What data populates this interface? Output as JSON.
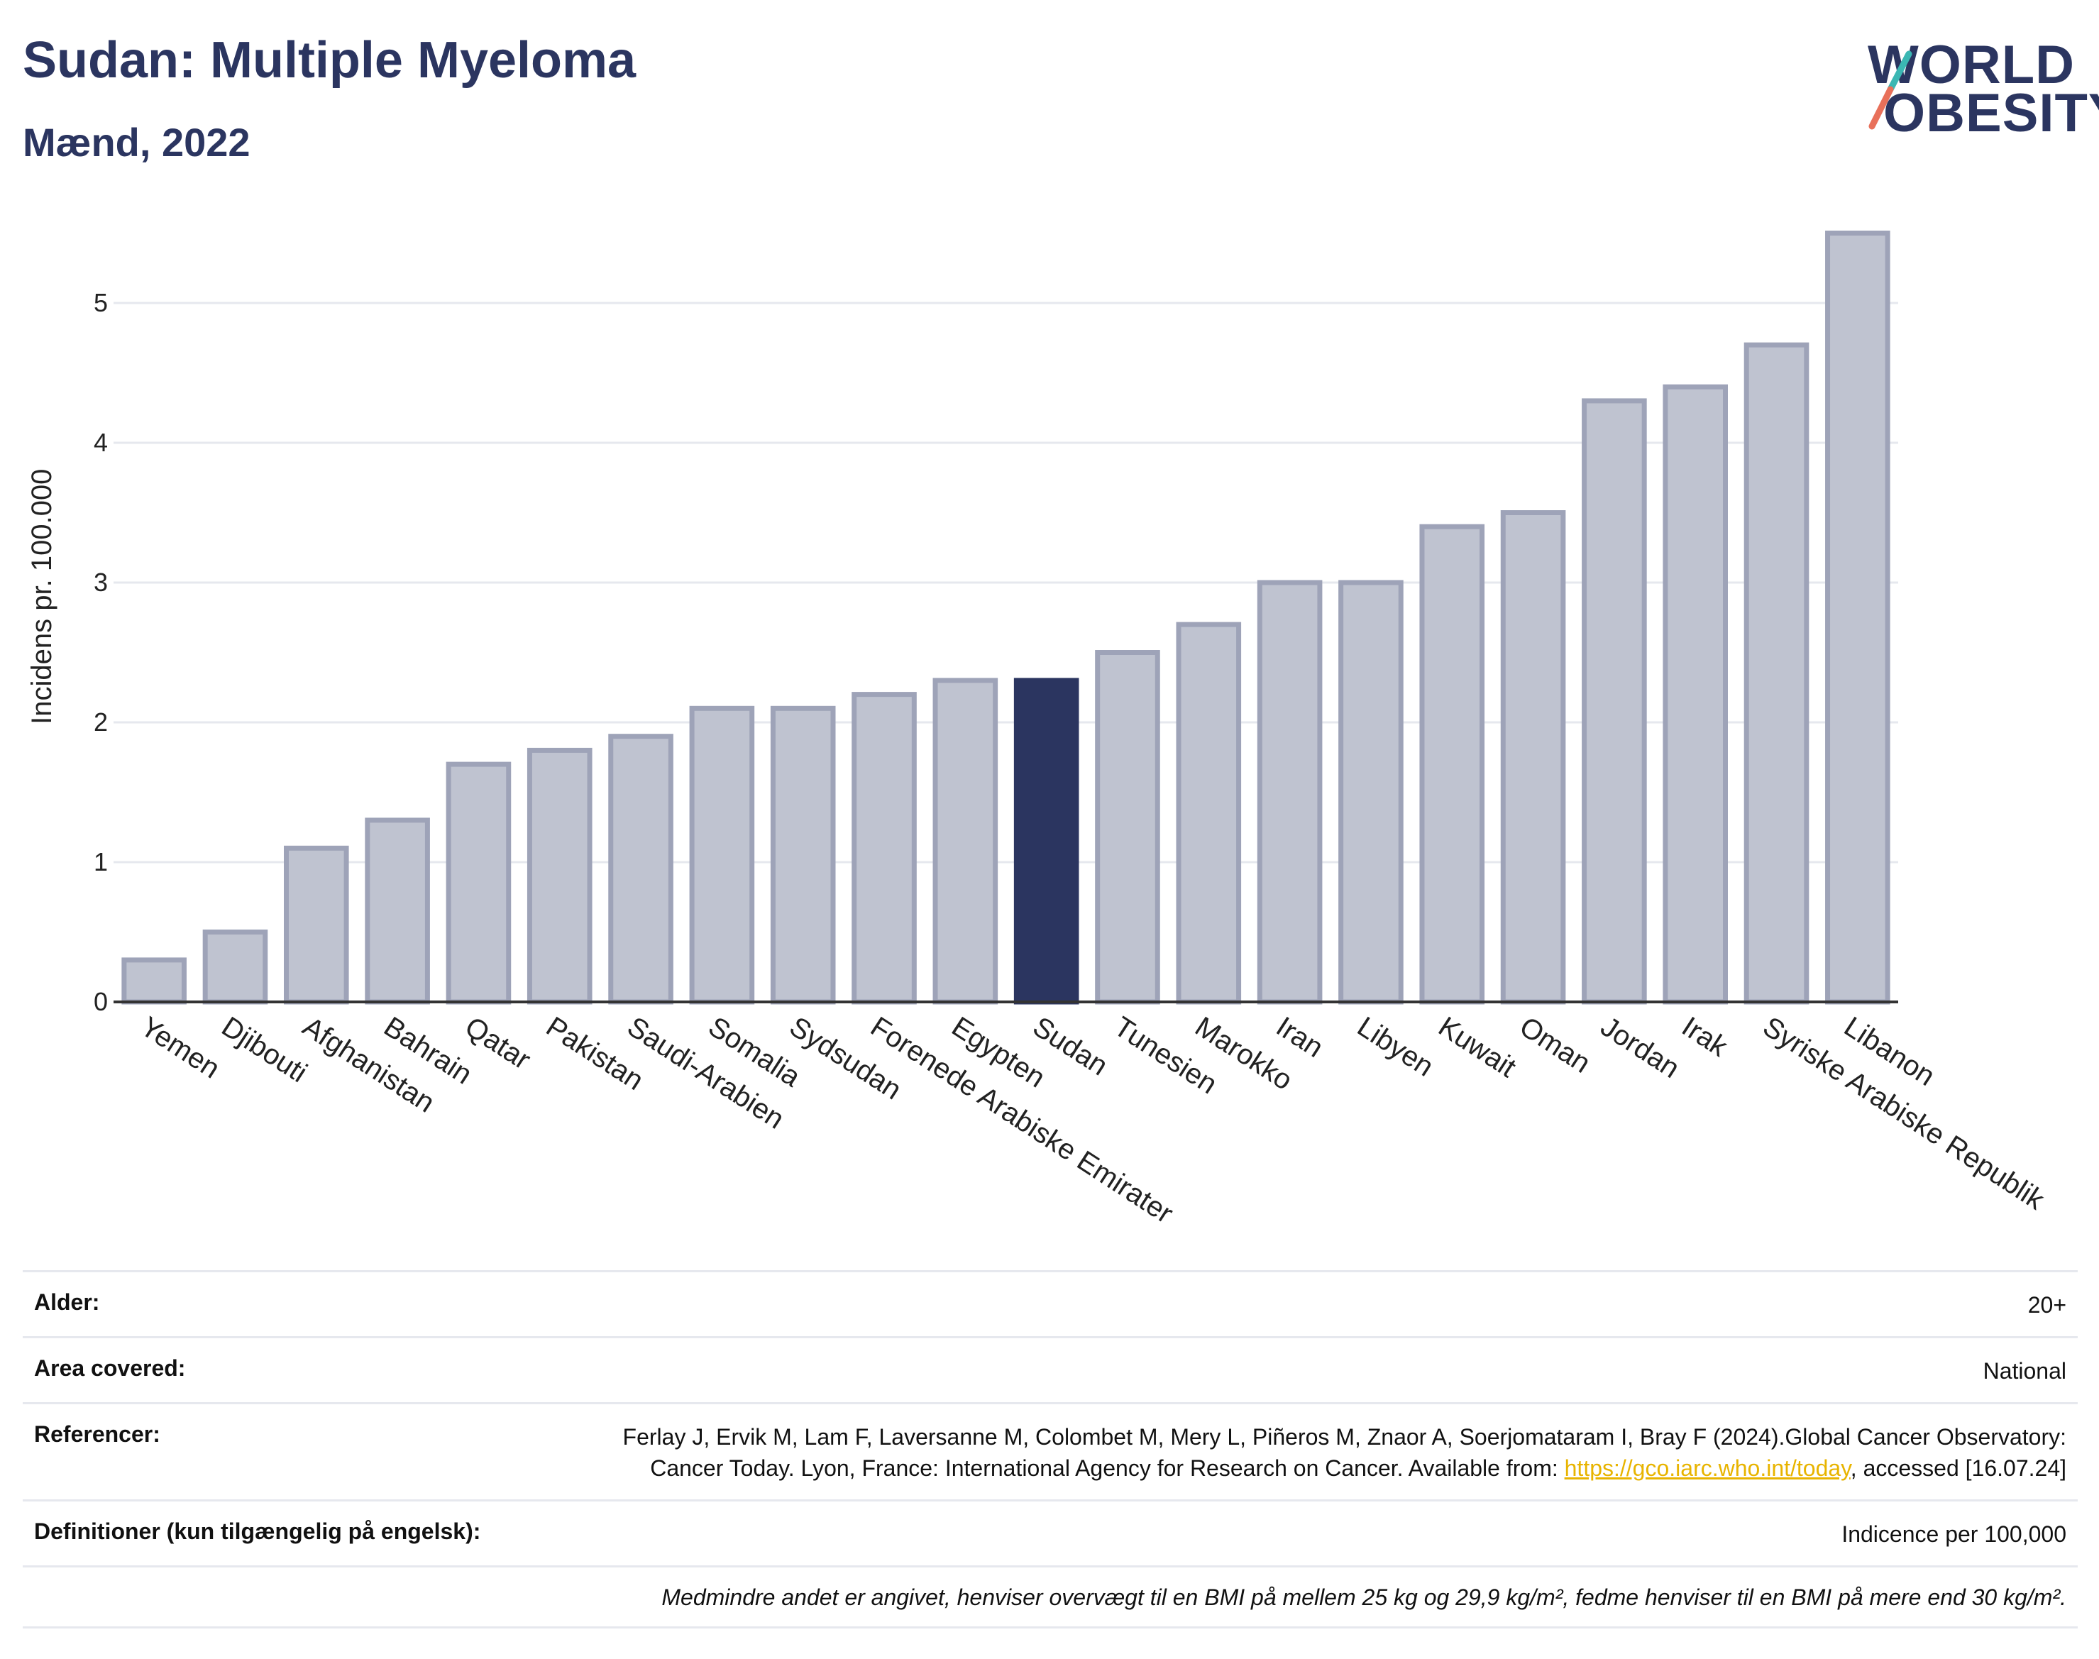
{
  "title": "Sudan: Multiple Myeloma",
  "subtitle": "Mænd, 2022",
  "logo": {
    "line1": "WORLD",
    "line2": "OBESITY"
  },
  "colors": {
    "bar": "#bfc3d0",
    "bar_border": "#9ea3b8",
    "highlight": "#2b3560",
    "grid": "#e6e8ee",
    "axis": "#333333",
    "link": "#e8b400"
  },
  "chart_data": {
    "type": "bar",
    "ylabel": "Incidens pr. 100.000",
    "ylim": [
      0,
      5.8
    ],
    "yticks": [
      0,
      1,
      2,
      3,
      4,
      5
    ],
    "grid": true,
    "highlight": "Sudan",
    "categories": [
      "Yemen",
      "Djibouti",
      "Afghanistan",
      "Bahrain",
      "Qatar",
      "Pakistan",
      "Saudi-Arabien",
      "Somalia",
      "Sydsudan",
      "Forenede Arabiske Emirater",
      "Egypten",
      "Sudan",
      "Tunesien",
      "Marokko",
      "Iran",
      "Libyen",
      "Kuwait",
      "Oman",
      "Jordan",
      "Irak",
      "Syriske Arabiske Republik",
      "Libanon"
    ],
    "values": [
      0.3,
      0.5,
      1.1,
      1.3,
      1.7,
      1.8,
      1.9,
      2.1,
      2.1,
      2.2,
      2.3,
      2.3,
      2.5,
      2.7,
      3.0,
      3.0,
      3.4,
      3.5,
      4.3,
      4.4,
      4.7,
      5.5
    ]
  },
  "meta": {
    "age_label": "Alder:",
    "age_value": "20+",
    "area_label": "Area covered:",
    "area_value": "National",
    "ref_label": "Referencer:",
    "ref_text1": "Ferlay J, Ervik M, Lam F, Laversanne M, Colombet M, Mery L, Piñeros M, Znaor A, Soerjomataram I, Bray F (2024).Global Cancer Observatory: Cancer Today. Lyon, France: International Agency for Research on Cancer. Available from: ",
    "ref_link": "https://gco.iarc.who.int/today",
    "ref_text2": ", accessed [16.07.24]",
    "def_label": "Definitioner (kun tilgængelig på engelsk):",
    "def_value": "Indicence per 100,000",
    "note": "Medmindre andet er angivet, henviser overvægt til en BMI på mellem 25 kg og 29,9 kg/m², fedme henviser til en BMI på mere end 30 kg/m²."
  }
}
